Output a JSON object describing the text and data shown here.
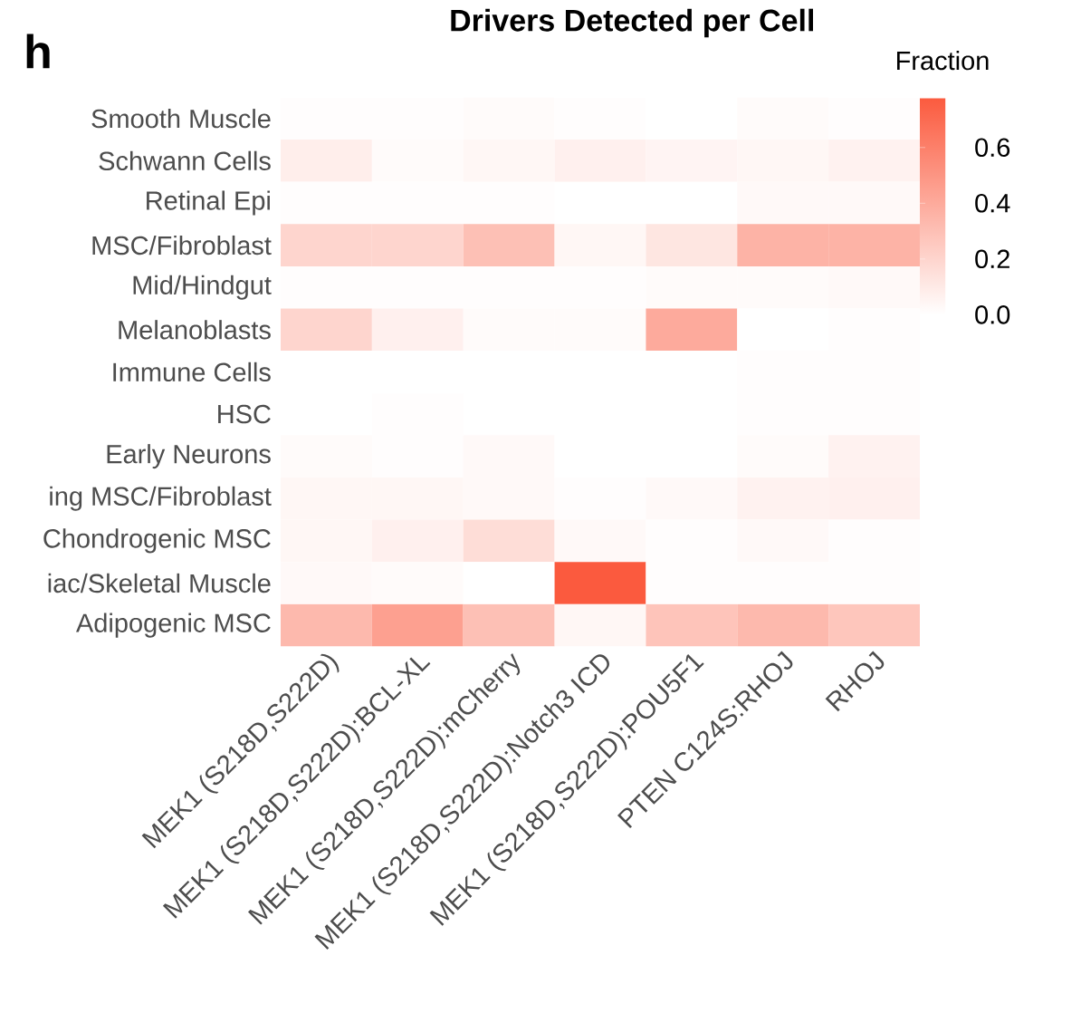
{
  "chart_data": {
    "type": "heatmap",
    "title": "Drivers Detected per Cell",
    "annotations": [
      "h"
    ],
    "clabel": "Fraction",
    "categories": [
      "MEK1 (S218D,S222D)",
      "MEK1 (S218D,S222D):BCL-XL",
      "MEK1 (S218D,S222D):mCherry",
      "MEK1 (S218D,S222D):Notch3 ICD",
      "MEK1 (S218D,S222D):POU5F1",
      "PTEN C124S:RHOJ",
      "RHOJ"
    ],
    "y_categories": [
      "Smooth Muscle",
      "Schwann Cells",
      "Retinal Epi",
      "MSC/Fibroblast",
      "Mid/Hindgut",
      "Melanoblasts",
      "Immune Cells",
      "HSC",
      "Early Neurons",
      "ing MSC/Fibroblast",
      "Chondrogenic MSC",
      "iac/Skeletal Muscle",
      "Adipogenic MSC"
    ],
    "cells": [
      [
        0.01,
        0.01,
        0.02,
        0.01,
        0.0,
        0.02,
        0.01
      ],
      [
        0.08,
        0.02,
        0.04,
        0.07,
        0.05,
        0.04,
        0.06
      ],
      [
        0.01,
        0.01,
        0.01,
        0.0,
        0.0,
        0.03,
        0.03
      ],
      [
        0.2,
        0.2,
        0.3,
        0.04,
        0.12,
        0.36,
        0.36
      ],
      [
        0.01,
        0.01,
        0.01,
        0.01,
        0.02,
        0.02,
        0.03
      ],
      [
        0.2,
        0.07,
        0.02,
        0.02,
        0.4,
        0.0,
        0.01
      ],
      [
        0.0,
        0.0,
        0.0,
        0.0,
        0.0,
        0.01,
        0.01
      ],
      [
        0.0,
        0.01,
        0.0,
        0.0,
        0.0,
        0.01,
        0.01
      ],
      [
        0.02,
        0.01,
        0.03,
        0.0,
        0.0,
        0.02,
        0.06
      ],
      [
        0.04,
        0.04,
        0.03,
        0.01,
        0.03,
        0.06,
        0.07
      ],
      [
        0.04,
        0.07,
        0.16,
        0.03,
        0.01,
        0.03,
        0.01
      ],
      [
        0.03,
        0.02,
        0.0,
        0.78,
        0.01,
        0.01,
        0.01
      ],
      [
        0.33,
        0.45,
        0.3,
        0.04,
        0.28,
        0.33,
        0.27
      ]
    ],
    "clim": [
      0,
      0.78
    ],
    "cticks": [
      {
        "value": 0,
        "label": "0.0"
      },
      {
        "value": 0.2,
        "label": "0.2"
      },
      {
        "value": 0.4,
        "label": "0.4"
      },
      {
        "value": 0.6,
        "label": "0.6"
      }
    ]
  }
}
